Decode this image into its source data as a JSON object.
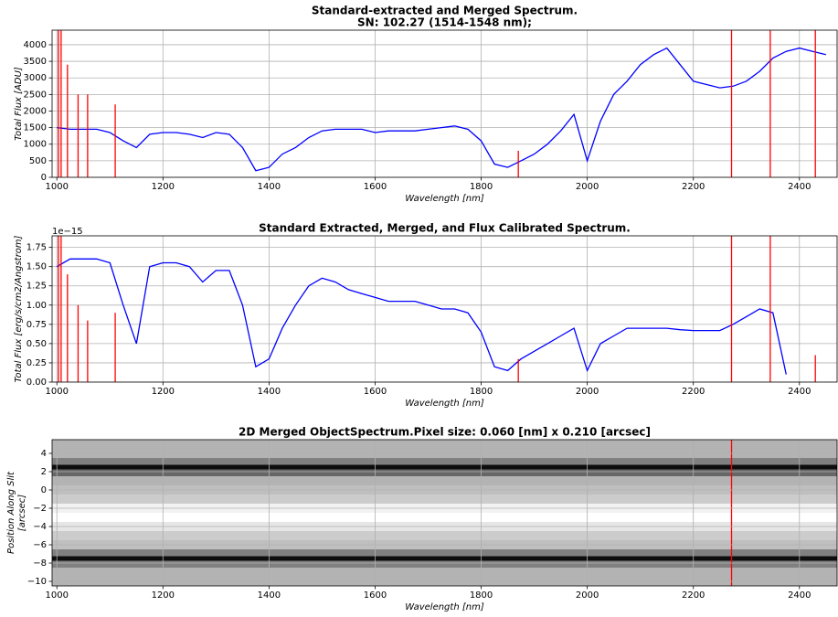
{
  "chart_data": [
    {
      "type": "line",
      "title": [
        "Standard-extracted and Merged Spectrum.",
        "SN: 102.27 (1514-1548 nm);"
      ],
      "xlabel": "Wavelength [nm]",
      "ylabel": "Total Flux [ADU]",
      "xlim": [
        991,
        2471
      ],
      "ylim": [
        0,
        4440
      ],
      "xticks": [
        1000,
        1200,
        1400,
        1600,
        1800,
        2000,
        2200,
        2400
      ],
      "yticks": [
        0,
        500,
        1000,
        1500,
        2000,
        2500,
        3000,
        3500,
        4000
      ],
      "grid": true,
      "x": [
        1000,
        1025,
        1050,
        1075,
        1100,
        1125,
        1150,
        1175,
        1200,
        1225,
        1250,
        1275,
        1300,
        1325,
        1350,
        1375,
        1400,
        1425,
        1450,
        1475,
        1500,
        1525,
        1550,
        1575,
        1600,
        1625,
        1650,
        1675,
        1700,
        1725,
        1750,
        1775,
        1800,
        1825,
        1850,
        1875,
        1900,
        1925,
        1950,
        1975,
        2000,
        2025,
        2050,
        2075,
        2100,
        2125,
        2150,
        2175,
        2200,
        2225,
        2250,
        2275,
        2300,
        2325,
        2350,
        2375,
        2400,
        2425,
        2450
      ],
      "series": [
        {
          "color": "#0000ff",
          "values": [
            1500,
            1450,
            1450,
            1450,
            1350,
            1100,
            900,
            1300,
            1350,
            1350,
            1300,
            1200,
            1350,
            1300,
            900,
            200,
            300,
            700,
            900,
            1200,
            1400,
            1450,
            1450,
            1450,
            1350,
            1400,
            1400,
            1400,
            1450,
            1500,
            1550,
            1450,
            1100,
            400,
            300,
            500,
            700,
            1000,
            1400,
            1900,
            500,
            1700,
            2500,
            2900,
            3400,
            3700,
            3900,
            3400,
            2900,
            2800,
            2700,
            2750,
            2900,
            3200,
            3600,
            3800,
            3900,
            3800,
            3700
          ]
        }
      ],
      "spikes": {
        "color": "#ff0000",
        "x": [
          1003,
          1008,
          1020,
          1040,
          1058,
          1110,
          1870,
          2272,
          2345,
          2430
        ],
        "values": [
          4440,
          4440,
          3400,
          2500,
          2500,
          2200,
          800,
          4440,
          4440,
          4440
        ]
      }
    },
    {
      "type": "line",
      "title": [
        "Standard Extracted, Merged, and Flux Calibrated Spectrum."
      ],
      "xlabel": "Wavelength [nm]",
      "ylabel": "Total Flux [erg/s/cm2/Angstrom]",
      "offset_label": "1e−15",
      "xlim": [
        991,
        2471
      ],
      "ylim": [
        0,
        1.9
      ],
      "xticks": [
        1000,
        1200,
        1400,
        1600,
        1800,
        2000,
        2200,
        2400
      ],
      "yticks": [
        {
          "value": 0,
          "label": "0.00"
        },
        0.25,
        {
          "value": 0.5,
          "label": "0.50"
        },
        0.75,
        {
          "value": 1,
          "label": "1.00"
        },
        1.25,
        {
          "value": 1.5,
          "label": "1.50"
        },
        1.75
      ],
      "grid": true,
      "x": [
        1000,
        1025,
        1050,
        1075,
        1100,
        1125,
        1150,
        1175,
        1200,
        1225,
        1250,
        1275,
        1300,
        1325,
        1350,
        1375,
        1400,
        1425,
        1450,
        1475,
        1500,
        1525,
        1550,
        1575,
        1600,
        1625,
        1650,
        1675,
        1700,
        1725,
        1750,
        1775,
        1800,
        1825,
        1850,
        1875,
        1900,
        1925,
        1950,
        1975,
        2000,
        2025,
        2050,
        2075,
        2100,
        2125,
        2150,
        2175,
        2200,
        2225,
        2250,
        2275,
        2300,
        2325,
        2350,
        2375,
        2400,
        2425,
        2450
      ],
      "series": [
        {
          "color": "#0000ff",
          "values": [
            1.5,
            1.6,
            1.6,
            1.6,
            1.55,
            1.0,
            0.5,
            1.5,
            1.55,
            1.55,
            1.5,
            1.3,
            1.45,
            1.45,
            1.0,
            0.2,
            0.3,
            0.7,
            1.0,
            1.25,
            1.35,
            1.3,
            1.2,
            1.15,
            1.1,
            1.05,
            1.05,
            1.05,
            1.0,
            0.95,
            0.95,
            0.9,
            0.65,
            0.2,
            0.15,
            0.3,
            0.4,
            0.5,
            0.6,
            0.7,
            0.15,
            0.5,
            0.6,
            0.7,
            0.7,
            0.7,
            0.7,
            0.68,
            0.67,
            0.67,
            0.67,
            0.75,
            0.85,
            0.95,
            0.9,
            0.1,
            null,
            null,
            null
          ]
        }
      ],
      "spikes": {
        "color": "#ff0000",
        "x": [
          1003,
          1008,
          1020,
          1040,
          1058,
          1110,
          1870,
          2272,
          2345,
          2430
        ],
        "values": [
          1.9,
          1.9,
          1.4,
          1.0,
          0.8,
          0.9,
          0.3,
          1.9,
          1.9,
          0.35
        ]
      }
    },
    {
      "type": "image",
      "title": [
        "2D Merged ObjectSpectrum.Pixel size: 0.060 [nm] x 0.210 [arcsec]"
      ],
      "xlabel": "Wavelength [nm]",
      "ylabel": [
        "Position Along Slit",
        "[arcsec]"
      ],
      "xlim": [
        991,
        2471
      ],
      "ylim": [
        -10.5,
        5.5
      ],
      "xticks": [
        1000,
        1200,
        1400,
        1600,
        1800,
        2000,
        2200,
        2400
      ],
      "yticks": [
        {
          "value": -10,
          "label": "−10"
        },
        {
          "value": -8,
          "label": "−8"
        },
        {
          "value": -6,
          "label": "−6"
        },
        {
          "value": -4,
          "label": "−4"
        },
        {
          "value": -2,
          "label": "−2"
        },
        0,
        2,
        4
      ],
      "grid": true,
      "profile": {
        "y": [
          -10,
          -9,
          -8,
          -7.5,
          -7,
          -6,
          -5,
          -4,
          -3,
          -2,
          -1,
          0,
          1,
          2,
          2.5,
          3,
          4,
          5
        ],
        "darkness": [
          0.3,
          0.3,
          0.5,
          0.95,
          0.5,
          0.25,
          0.2,
          0.1,
          0.0,
          0.05,
          0.2,
          0.25,
          0.3,
          0.6,
          0.95,
          0.5,
          0.3,
          0.3
        ]
      },
      "spikes": {
        "color": "#ff0000",
        "x": [
          2272
        ],
        "values": [
          5.5
        ]
      }
    }
  ]
}
